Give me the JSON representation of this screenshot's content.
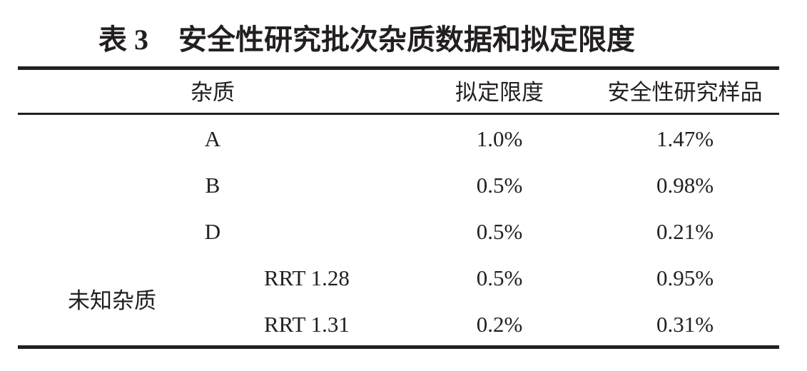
{
  "title_label": "表 3",
  "title": "安全性研究批次杂质数据和拟定限度",
  "table": {
    "headers": [
      "杂质",
      "拟定限度",
      "安全性研究样品"
    ],
    "rows": [
      [
        "A",
        "1.0%",
        "1.47%"
      ],
      [
        "B",
        "0.5%",
        "0.98%"
      ],
      [
        "D",
        "0.5%",
        "0.21%"
      ]
    ],
    "group": "未知杂质",
    "group_rows": [
      [
        "RRT 1.28",
        "0.5%",
        "0.95%"
      ],
      [
        "RRT 1.31",
        "0.2%",
        "0.31%"
      ]
    ]
  }
}
